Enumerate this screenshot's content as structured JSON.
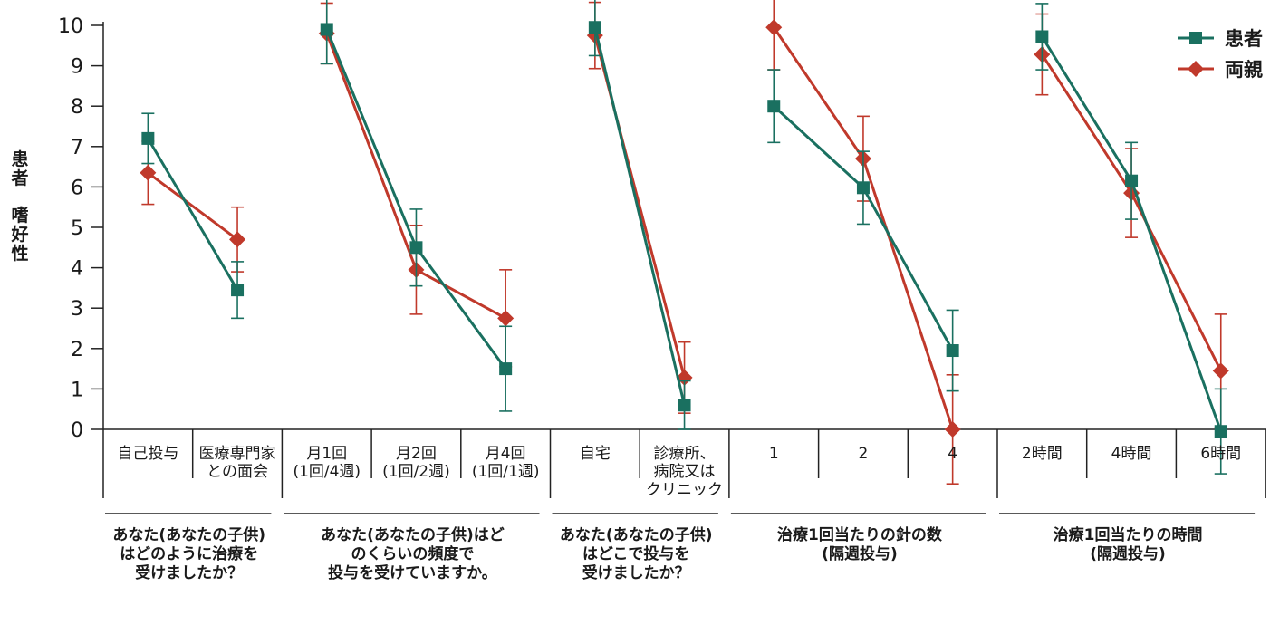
{
  "chart_data": {
    "type": "line",
    "ylabel": [
      "患者",
      "嗜好性"
    ],
    "ylim": [
      0,
      10
    ],
    "yticks": [
      "0",
      "1",
      "2",
      "3",
      "4",
      "5",
      "6",
      "7",
      "8",
      "9",
      "10"
    ],
    "grid": false,
    "legend_position": "top-right",
    "legend": [
      {
        "name": "患者",
        "color": "#1a7060",
        "marker": "square"
      },
      {
        "name": "両親",
        "color": "#c0392b",
        "marker": "diamond"
      }
    ],
    "groups": [
      {
        "question": [
          "あなた(あなたの子供)",
          "はどのように治療を",
          "受けましたか？"
        ],
        "categories": [
          [
            "自己投与"
          ],
          [
            "医療専門家",
            "との面会"
          ]
        ],
        "series": [
          {
            "name": "患者",
            "values": [
              7.2,
              3.45
            ],
            "err": [
              0.62,
              0.7
            ]
          },
          {
            "name": "両親",
            "values": [
              6.35,
              4.7
            ],
            "err": [
              0.78,
              0.8
            ]
          }
        ]
      },
      {
        "question": [
          "あなた(あなたの子供)はど",
          "のくらいの頻度で",
          "投与を受けていますか。"
        ],
        "categories": [
          [
            "月1回",
            "(1回/4週)"
          ],
          [
            "月2回",
            "(1回/2週)"
          ],
          [
            "月4回",
            "(1回/1週)"
          ]
        ],
        "series": [
          {
            "name": "患者",
            "values": [
              9.9,
              4.5,
              1.5
            ],
            "err": [
              0.85,
              0.95,
              1.05
            ]
          },
          {
            "name": "両親",
            "values": [
              9.8,
              3.95,
              2.75
            ],
            "err": [
              0.75,
              1.1,
              1.2
            ]
          }
        ]
      },
      {
        "question": [
          "あなた(あなたの子供)",
          "はどこで投与を",
          "受けましたか？"
        ],
        "categories": [
          [
            "自宅"
          ],
          [
            "診療所、",
            "病院又は",
            "クリニック"
          ]
        ],
        "series": [
          {
            "name": "患者",
            "values": [
              9.95,
              0.6
            ],
            "err": [
              0.7,
              0.6
            ]
          },
          {
            "name": "両親",
            "values": [
              9.75,
              1.28
            ],
            "err": [
              0.82,
              0.88
            ]
          }
        ]
      },
      {
        "question": [
          "治療1回当たりの針の数",
          "(隔週投与)"
        ],
        "categories": [
          [
            "1"
          ],
          [
            "2"
          ],
          [
            "4"
          ]
        ],
        "series": [
          {
            "name": "患者",
            "values": [
              8.0,
              5.98,
              1.95
            ],
            "err": [
              0.9,
              0.9,
              1.0
            ]
          },
          {
            "name": "両親",
            "values": [
              9.95,
              6.7,
              0.0
            ],
            "err": [
              1.05,
              1.05,
              1.35
            ]
          }
        ]
      },
      {
        "question": [
          "治療1回当たりの時間",
          "(隔週投与)"
        ],
        "categories": [
          [
            "2時間"
          ],
          [
            "4時間"
          ],
          [
            "6時間"
          ]
        ],
        "series": [
          {
            "name": "患者",
            "values": [
              9.72,
              6.15,
              -0.05
            ],
            "err": [
              0.82,
              0.95,
              1.05
            ]
          },
          {
            "name": "両親",
            "values": [
              9.28,
              5.85,
              1.45
            ],
            "err": [
              1.0,
              1.1,
              1.4
            ]
          }
        ]
      }
    ]
  }
}
